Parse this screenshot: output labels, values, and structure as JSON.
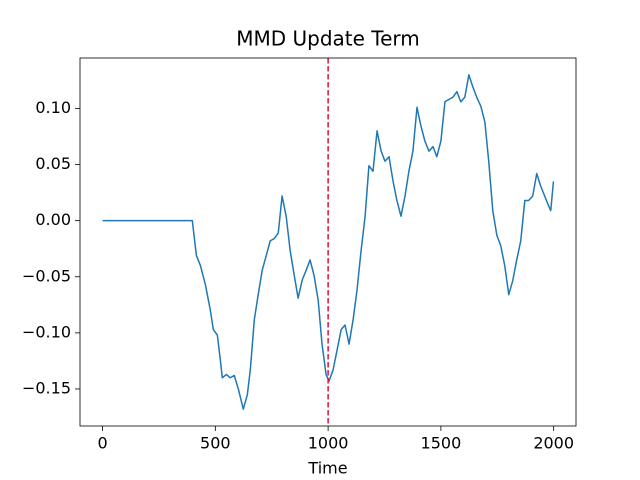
{
  "chart_data": {
    "type": "line",
    "title": "MMD Update Term",
    "xlabel": "Time",
    "x": [
      0,
      398,
      416,
      434,
      456,
      478,
      491,
      509,
      522,
      531,
      549,
      566,
      584,
      602,
      624,
      642,
      655,
      673,
      690,
      708,
      726,
      743,
      761,
      779,
      796,
      814,
      832,
      850,
      867,
      885,
      903,
      920,
      938,
      956,
      973,
      991,
      1004,
      1022,
      1040,
      1058,
      1075,
      1093,
      1111,
      1128,
      1146,
      1164,
      1181,
      1199,
      1217,
      1235,
      1252,
      1270,
      1288,
      1305,
      1323,
      1341,
      1358,
      1376,
      1394,
      1412,
      1429,
      1447,
      1465,
      1482,
      1500,
      1518,
      1535,
      1553,
      1571,
      1588,
      1606,
      1624,
      1642,
      1659,
      1677,
      1695,
      1712,
      1730,
      1748,
      1765,
      1783,
      1801,
      1819,
      1836,
      1854,
      1872,
      1889,
      1907,
      1925,
      1942,
      1960,
      1978,
      1987,
      1999
    ],
    "series": [
      {
        "color": "#1f77b4",
        "values": [
          0,
          0,
          -0.031,
          -0.04,
          -0.057,
          -0.08,
          -0.097,
          -0.102,
          -0.124,
          -0.14,
          -0.137,
          -0.14,
          -0.138,
          -0.15,
          -0.168,
          -0.155,
          -0.133,
          -0.088,
          -0.066,
          -0.044,
          -0.031,
          -0.018,
          -0.016,
          -0.011,
          0.022,
          0.004,
          -0.027,
          -0.049,
          -0.069,
          -0.053,
          -0.044,
          -0.035,
          -0.049,
          -0.071,
          -0.11,
          -0.137,
          -0.143,
          -0.133,
          -0.115,
          -0.097,
          -0.093,
          -0.11,
          -0.088,
          -0.062,
          -0.027,
          0.004,
          0.049,
          0.044,
          0.08,
          0.062,
          0.053,
          0.057,
          0.035,
          0.018,
          0.004,
          0.022,
          0.044,
          0.062,
          0.101,
          0.084,
          0.071,
          0.062,
          0.066,
          0.057,
          0.071,
          0.106,
          0.108,
          0.11,
          0.115,
          0.106,
          0.11,
          0.13,
          0.119,
          0.11,
          0.102,
          0.088,
          0.053,
          0.009,
          -0.013,
          -0.022,
          -0.04,
          -0.066,
          -0.053,
          -0.035,
          -0.018,
          0.018,
          0.018,
          0.022,
          0.042,
          0.031,
          0.022,
          0.013,
          0.009,
          0.035
        ]
      }
    ],
    "vline": {
      "x": 1000,
      "color": "#dc143c"
    },
    "xlim": [
      -99.95,
      2098.95
    ],
    "xticks": [
      0,
      500,
      1000,
      1500,
      2000
    ],
    "ylim": [
      -0.183,
      0.145
    ],
    "yticks": [
      {
        "value": -0.15,
        "label": "−0.15"
      },
      {
        "value": -0.1,
        "label": "−0.10"
      },
      {
        "value": -0.05,
        "label": "−0.05"
      },
      {
        "value": 0,
        "label": "0.00"
      },
      {
        "value": 0.05,
        "label": "0.05"
      },
      {
        "value": 0.1,
        "label": "0.10"
      }
    ],
    "grid": false
  }
}
